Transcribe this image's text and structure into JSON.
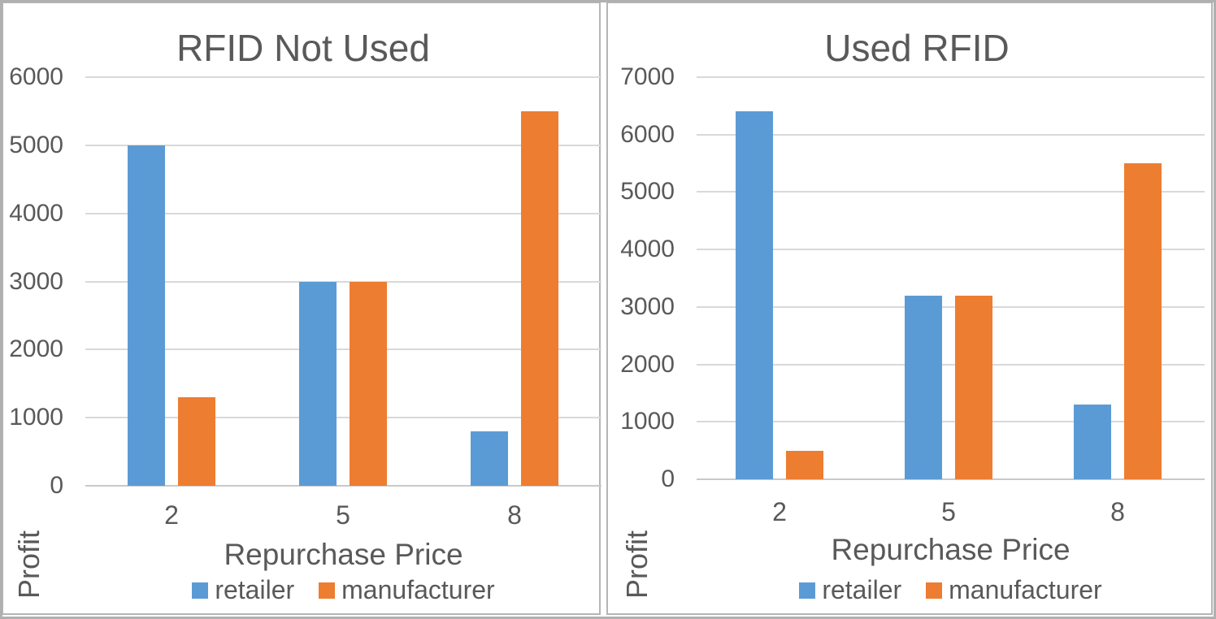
{
  "colors": {
    "retailer": "#5B9BD5",
    "manufacturer": "#ED7D31",
    "text": "#595959",
    "gridline": "#D9D9D9",
    "axis_line": "#C9C9C9",
    "panel_border": "#B5B5B5"
  },
  "chart_data": [
    {
      "type": "bar",
      "title": "RFID Not Used",
      "categories": [
        "2",
        "5",
        "8"
      ],
      "series": [
        {
          "name": "retailer",
          "values": [
            5000,
            3000,
            800
          ]
        },
        {
          "name": "manufacturer",
          "values": [
            1300,
            3000,
            5500
          ]
        }
      ],
      "xlabel": "Repurchase Price",
      "ylabel": "Profit",
      "ylim": [
        0,
        6000
      ],
      "ytick_interval": 1000,
      "grid": true,
      "legend_position": "bottom"
    },
    {
      "type": "bar",
      "title": "Used RFID",
      "categories": [
        "2",
        "5",
        "8"
      ],
      "series": [
        {
          "name": "retailer",
          "values": [
            6400,
            3200,
            1300
          ]
        },
        {
          "name": "manufacturer",
          "values": [
            500,
            3200,
            5500
          ]
        }
      ],
      "xlabel": "Repurchase Price",
      "ylabel": "Profit",
      "ylim": [
        0,
        7000
      ],
      "ytick_interval": 1000,
      "grid": true,
      "legend_position": "bottom"
    }
  ]
}
